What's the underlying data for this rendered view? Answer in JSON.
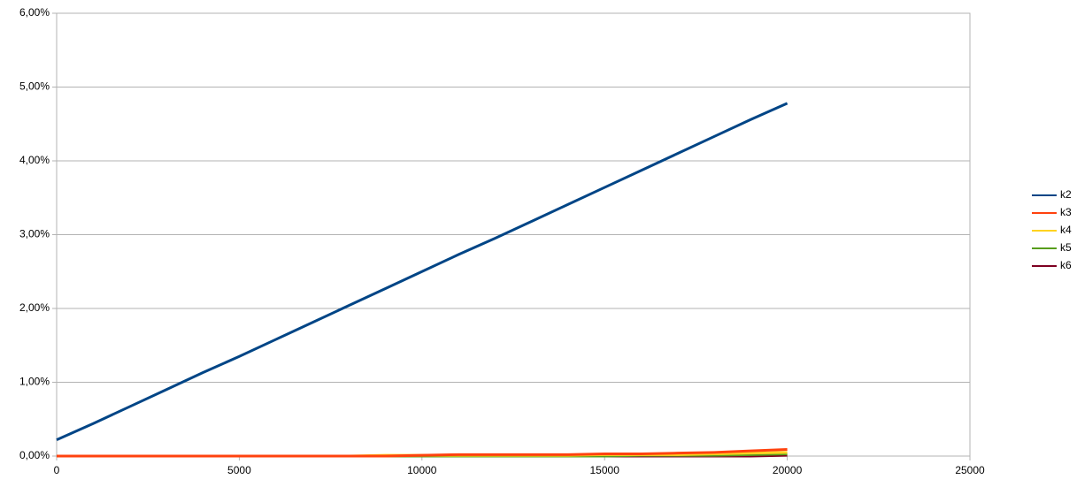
{
  "chart_data": {
    "type": "line",
    "x": [
      0,
      1000,
      2000,
      3000,
      4000,
      5000,
      6000,
      7000,
      8000,
      9000,
      10000,
      11000,
      12000,
      13000,
      14000,
      15000,
      16000,
      17000,
      18000,
      19000,
      20000
    ],
    "series": [
      {
        "name": "k2",
        "color": "#004586",
        "values": [
          0.22,
          0.44,
          0.67,
          0.9,
          1.13,
          1.35,
          1.58,
          1.81,
          2.04,
          2.27,
          2.5,
          2.73,
          2.95,
          3.18,
          3.41,
          3.64,
          3.87,
          4.1,
          4.33,
          4.56,
          4.78
        ]
      },
      {
        "name": "k3",
        "color": "#ff420e",
        "values": [
          0,
          0,
          0,
          0,
          0,
          0,
          0,
          0,
          0,
          0,
          0.01,
          0.02,
          0.02,
          0.02,
          0.02,
          0.03,
          0.03,
          0.04,
          0.05,
          0.07,
          0.09
        ]
      },
      {
        "name": "k4",
        "color": "#ffd320",
        "values": [
          0,
          0,
          0,
          0,
          0,
          0,
          0,
          0,
          0,
          0.01,
          0.01,
          0.01,
          0.01,
          0.01,
          0.01,
          0.02,
          0.02,
          0.02,
          0.03,
          0.04,
          0.05
        ]
      },
      {
        "name": "k5",
        "color": "#579d1c",
        "values": [
          0,
          0,
          0,
          0,
          0,
          0,
          0,
          0,
          0,
          0,
          0,
          0,
          0,
          0,
          0,
          0,
          0.01,
          0.01,
          0.01,
          0.02,
          0.03
        ]
      },
      {
        "name": "k6",
        "color": "#7e0021",
        "values": [
          0,
          0,
          0,
          0,
          0,
          0,
          0,
          0,
          0,
          0,
          0,
          0,
          0,
          0,
          0,
          0,
          0,
          0,
          0,
          0,
          0.01
        ]
      }
    ],
    "xlim": [
      0,
      25000
    ],
    "xticks": [
      0,
      5000,
      10000,
      15000,
      20000,
      25000
    ],
    "ylim": [
      0,
      6
    ],
    "yticks": [
      {
        "value": 0,
        "label": "0,00%"
      },
      {
        "value": 1,
        "label": "1,00%"
      },
      {
        "value": 2,
        "label": "2,00%"
      },
      {
        "value": 3,
        "label": "3,00%"
      },
      {
        "value": 4,
        "label": "4,00%"
      },
      {
        "value": 5,
        "label": "5,00%"
      },
      {
        "value": 6,
        "label": "6,00%"
      }
    ],
    "grid": true,
    "legend": "right"
  }
}
